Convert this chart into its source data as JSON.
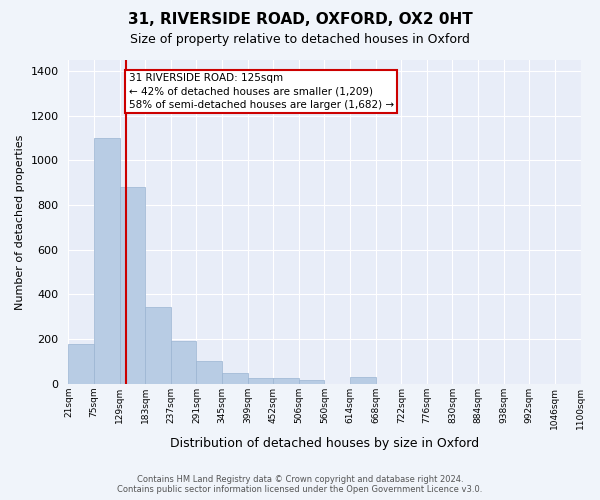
{
  "title": "31, RIVERSIDE ROAD, OXFORD, OX2 0HT",
  "subtitle": "Size of property relative to detached houses in Oxford",
  "xlabel": "Distribution of detached houses by size in Oxford",
  "ylabel": "Number of detached properties",
  "bar_color": "#b8cce4",
  "bar_edge_color": "#9ab4d2",
  "bar_values": [
    180,
    1100,
    880,
    345,
    190,
    100,
    50,
    25,
    25,
    15,
    0,
    30,
    0,
    0,
    0,
    0,
    0,
    0,
    0,
    0
  ],
  "bar_labels": [
    "21sqm",
    "75sqm",
    "129sqm",
    "183sqm",
    "237sqm",
    "291sqm",
    "345sqm",
    "399sqm",
    "452sqm",
    "506sqm",
    "560sqm",
    "614sqm",
    "668sqm",
    "722sqm",
    "776sqm",
    "830sqm",
    "884sqm",
    "938sqm",
    "992sqm",
    "1046sqm",
    "1100sqm"
  ],
  "vline_color": "#cc0000",
  "annotation_text": "31 RIVERSIDE ROAD: 125sqm\n← 42% of detached houses are smaller (1,209)\n58% of semi-detached houses are larger (1,682) →",
  "ylim": [
    0,
    1450
  ],
  "yticks": [
    0,
    200,
    400,
    600,
    800,
    1000,
    1200,
    1400
  ],
  "footer_text": "Contains HM Land Registry data © Crown copyright and database right 2024.\nContains public sector information licensed under the Open Government Licence v3.0.",
  "bg_color": "#f0f4fa",
  "plot_bg_color": "#e8edf8"
}
